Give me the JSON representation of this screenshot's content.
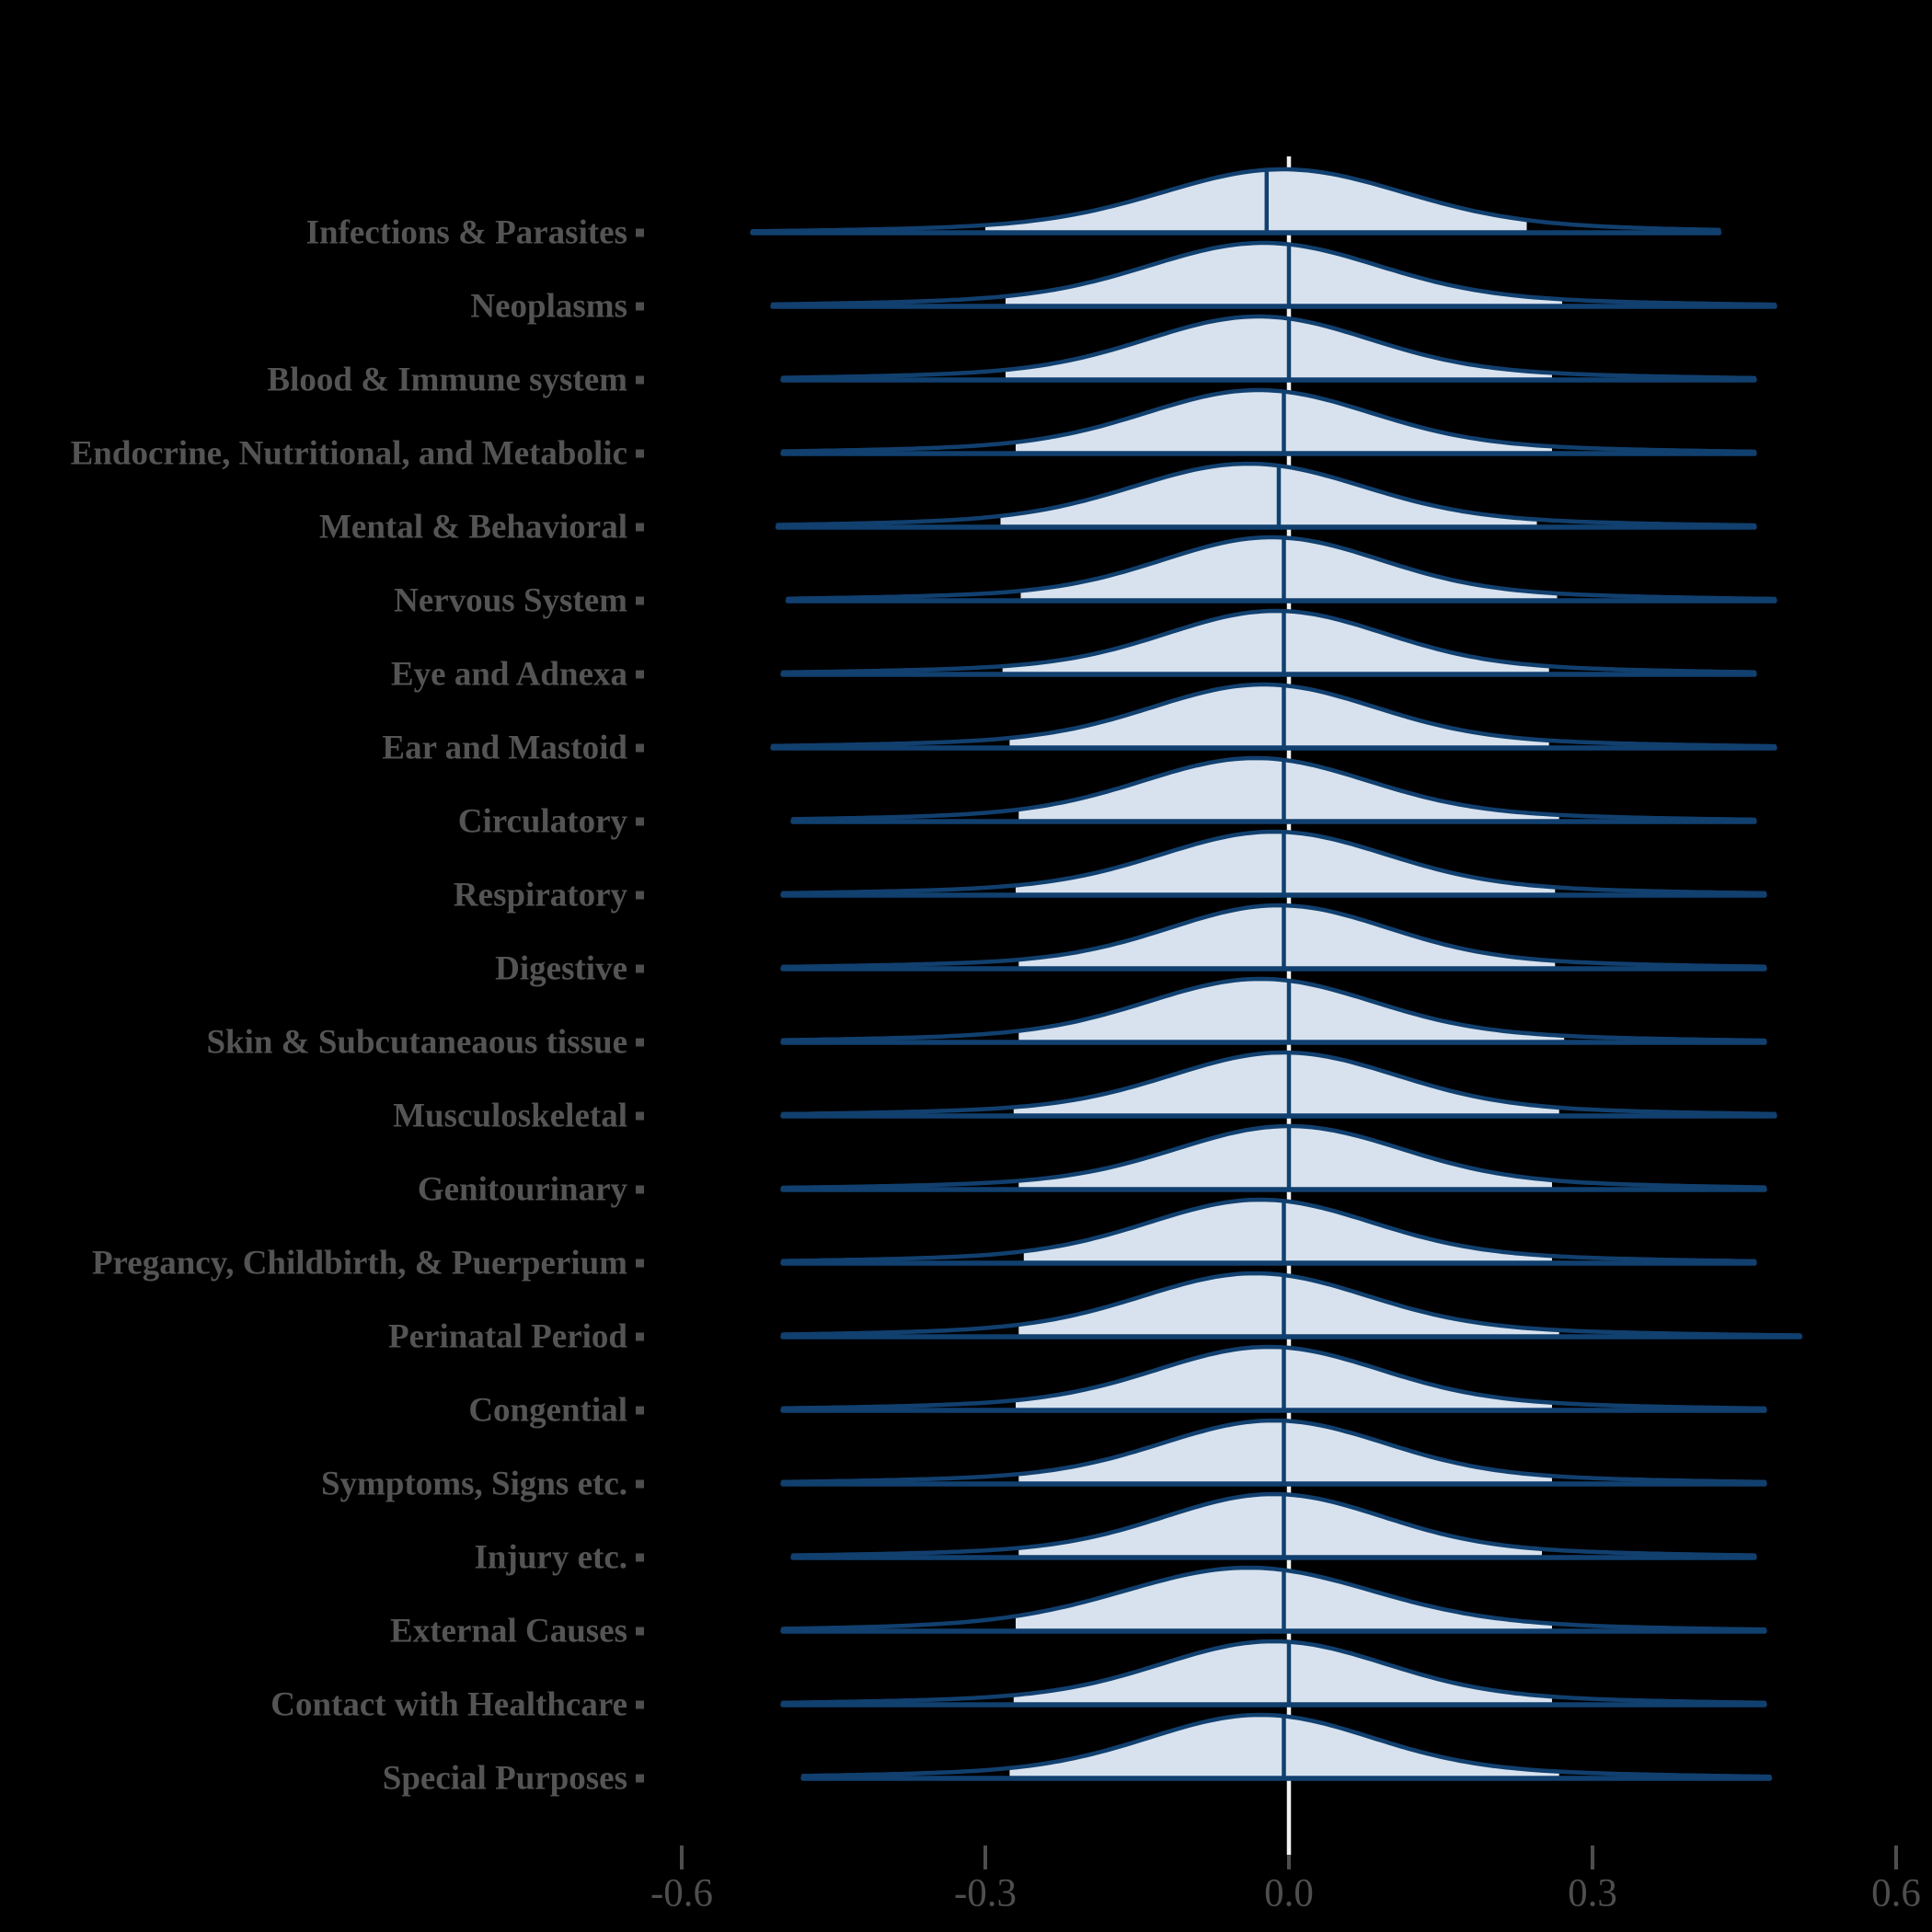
{
  "colors": {
    "background": "#000000",
    "curve": "#11406f",
    "fill": "#d8e2ee",
    "zero_line": "#f2f1ee",
    "axis_text": "#4e4e4e",
    "category_text": "#545454",
    "tick_mark": "#4e4e4e"
  },
  "chart_data": {
    "type": "area",
    "subtype": "ridgeline-density",
    "title": "",
    "xlabel": "",
    "ylabel": "",
    "grid": false,
    "legend": "none",
    "xlim": [
      -0.73,
      0.64
    ],
    "x_tick_values": [
      -0.6,
      -0.3,
      0.0,
      0.3,
      0.6
    ],
    "x_tick_labels": [
      "-0.6",
      "-0.3",
      "0.0",
      "0.3",
      "0.6"
    ],
    "zero_reference_line": 0.0,
    "categories": [
      "Infections & Parasites",
      "Neoplasms",
      "Blood & Immune system",
      "Endocrine, Nutritional, and Metabolic",
      "Mental & Behavioral",
      "Nervous System",
      "Eye and Adnexa",
      "Ear and Mastoid",
      "Circulatory",
      "Respiratory",
      "Digestive",
      "Skin & Subcutaneaous tissue",
      "Musculoskeletal",
      "Genitourinary",
      "Pregancy, Childbirth, & Puerperium",
      "Perinatal Period",
      "Congential",
      "Symptoms, Signs etc.",
      "Injury etc.",
      "External Causes",
      "Contact with Healthcare",
      "Special Purposes"
    ],
    "series": [
      {
        "name": "Infections & Parasites",
        "mode": -0.006,
        "median": -0.022,
        "sd": 0.115,
        "fill_range": [
          -0.3,
          0.235
        ],
        "range": [
          -0.53,
          0.425
        ]
      },
      {
        "name": "Neoplasms",
        "mode": -0.025,
        "median": 0.0,
        "sd": 0.11,
        "fill_range": [
          -0.28,
          0.27
        ],
        "range": [
          -0.51,
          0.48
        ]
      },
      {
        "name": "Blood & Immune system",
        "mode": -0.03,
        "median": 0.0,
        "sd": 0.107,
        "fill_range": [
          -0.28,
          0.26
        ],
        "range": [
          -0.5,
          0.46
        ]
      },
      {
        "name": "Endocrine, Nutritional, and Metabolic",
        "mode": -0.03,
        "median": -0.005,
        "sd": 0.108,
        "fill_range": [
          -0.27,
          0.26
        ],
        "range": [
          -0.5,
          0.46
        ]
      },
      {
        "name": "Mental & Behavioral",
        "mode": -0.04,
        "median": -0.01,
        "sd": 0.11,
        "fill_range": [
          -0.285,
          0.245
        ],
        "range": [
          -0.505,
          0.46
        ]
      },
      {
        "name": "Nervous System",
        "mode": -0.017,
        "median": -0.005,
        "sd": 0.105,
        "fill_range": [
          -0.265,
          0.265
        ],
        "range": [
          -0.495,
          0.48
        ]
      },
      {
        "name": "Eye and Adnexa",
        "mode": -0.013,
        "median": -0.005,
        "sd": 0.105,
        "fill_range": [
          -0.283,
          0.257
        ],
        "range": [
          -0.5,
          0.46
        ]
      },
      {
        "name": "Ear and Mastoid",
        "mode": -0.025,
        "median": -0.005,
        "sd": 0.107,
        "fill_range": [
          -0.276,
          0.257
        ],
        "range": [
          -0.51,
          0.48
        ]
      },
      {
        "name": "Circulatory",
        "mode": -0.033,
        "median": -0.005,
        "sd": 0.108,
        "fill_range": [
          -0.267,
          0.267
        ],
        "range": [
          -0.49,
          0.46
        ]
      },
      {
        "name": "Respiratory",
        "mode": -0.015,
        "median": -0.005,
        "sd": 0.108,
        "fill_range": [
          -0.27,
          0.263
        ],
        "range": [
          -0.5,
          0.47
        ]
      },
      {
        "name": "Digestive",
        "mode": -0.01,
        "median": -0.005,
        "sd": 0.105,
        "fill_range": [
          -0.267,
          0.263
        ],
        "range": [
          -0.5,
          0.47
        ]
      },
      {
        "name": "Skin & Subcutaneaous tissue",
        "mode": -0.028,
        "median": 0.0,
        "sd": 0.108,
        "fill_range": [
          -0.267,
          0.272
        ],
        "range": [
          -0.5,
          0.47
        ]
      },
      {
        "name": "Musculoskeletal",
        "mode": -0.005,
        "median": 0.0,
        "sd": 0.108,
        "fill_range": [
          -0.272,
          0.267
        ],
        "range": [
          -0.5,
          0.48
        ]
      },
      {
        "name": "Genitourinary",
        "mode": 0.0,
        "median": 0.0,
        "sd": 0.108,
        "fill_range": [
          -0.267,
          0.26
        ],
        "range": [
          -0.5,
          0.47
        ]
      },
      {
        "name": "Pregancy, Childbirth, & Puerperium",
        "mode": -0.028,
        "median": -0.005,
        "sd": 0.107,
        "fill_range": [
          -0.262,
          0.26
        ],
        "range": [
          -0.5,
          0.46
        ]
      },
      {
        "name": "Perinatal Period",
        "mode": -0.033,
        "median": -0.005,
        "sd": 0.108,
        "fill_range": [
          -0.267,
          0.267
        ],
        "range": [
          -0.5,
          0.505
        ]
      },
      {
        "name": "Congential",
        "mode": -0.02,
        "median": -0.005,
        "sd": 0.107,
        "fill_range": [
          -0.27,
          0.26
        ],
        "range": [
          -0.5,
          0.47
        ]
      },
      {
        "name": "Symptoms, Signs etc.",
        "mode": -0.015,
        "median": -0.005,
        "sd": 0.107,
        "fill_range": [
          -0.267,
          0.26
        ],
        "range": [
          -0.5,
          0.47
        ]
      },
      {
        "name": "Injury etc.",
        "mode": -0.015,
        "median": -0.005,
        "sd": 0.105,
        "fill_range": [
          -0.267,
          0.25
        ],
        "range": [
          -0.49,
          0.46
        ]
      },
      {
        "name": "External Causes",
        "mode": -0.04,
        "median": -0.005,
        "sd": 0.118,
        "fill_range": [
          -0.27,
          0.26
        ],
        "range": [
          -0.5,
          0.47
        ]
      },
      {
        "name": "Contact with Healthcare",
        "mode": -0.015,
        "median": 0.0,
        "sd": 0.108,
        "fill_range": [
          -0.272,
          0.26
        ],
        "range": [
          -0.5,
          0.47
        ]
      },
      {
        "name": "Special Purposes",
        "mode": -0.028,
        "median": -0.005,
        "sd": 0.107,
        "fill_range": [
          -0.276,
          0.267
        ],
        "range": [
          -0.48,
          0.475
        ]
      }
    ]
  }
}
